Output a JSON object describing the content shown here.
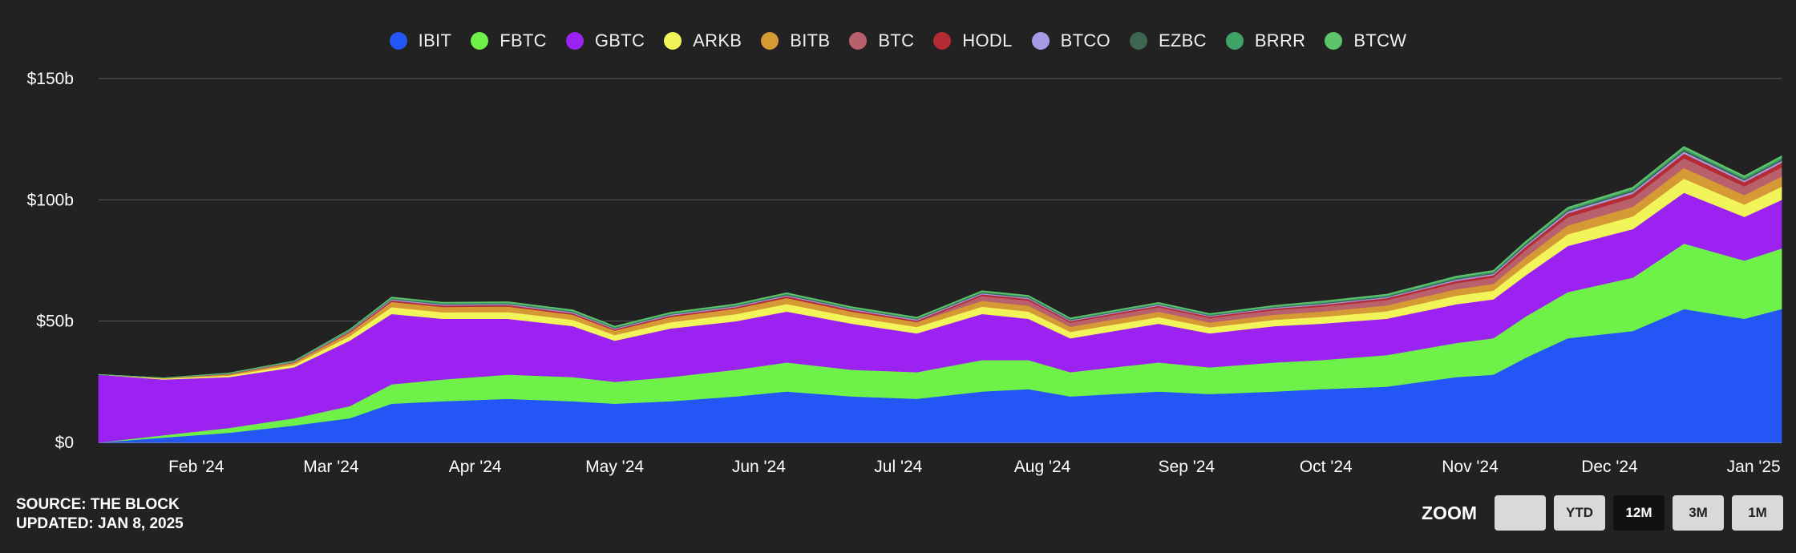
{
  "legend": [
    {
      "name": "IBIT",
      "color": "#2456f5"
    },
    {
      "name": "FBTC",
      "color": "#6ef24a"
    },
    {
      "name": "GBTC",
      "color": "#9b22f0"
    },
    {
      "name": "ARKB",
      "color": "#f2f55a"
    },
    {
      "name": "BITB",
      "color": "#d69a35"
    },
    {
      "name": "BTC",
      "color": "#b8606c"
    },
    {
      "name": "HODL",
      "color": "#b52b35"
    },
    {
      "name": "BTCO",
      "color": "#a99ae6"
    },
    {
      "name": "EZBC",
      "color": "#3f6650"
    },
    {
      "name": "BRRR",
      "color": "#3fa368"
    },
    {
      "name": "BTCW",
      "color": "#5cc46a"
    }
  ],
  "footer": {
    "source": "SOURCE: THE BLOCK",
    "updated": "UPDATED: JAN 8, 2025"
  },
  "zoom": {
    "label": "ZOOM",
    "buttons": [
      {
        "label": "",
        "active": false
      },
      {
        "label": "YTD",
        "active": false
      },
      {
        "label": "12M",
        "active": true
      },
      {
        "label": "3M",
        "active": false
      },
      {
        "label": "1M",
        "active": false
      }
    ]
  },
  "chart_data": {
    "type": "area",
    "stacked": true,
    "title": "",
    "xlabel": "",
    "ylabel": "",
    "ylim": [
      0,
      150
    ],
    "y_unit": "$b",
    "y_ticks": [
      "$0",
      "$50b",
      "$100b",
      "$150b"
    ],
    "y_tick_values": [
      0,
      50,
      100,
      150
    ],
    "x_ticks": [
      "Feb '24",
      "Mar '24",
      "Apr '24",
      "May '24",
      "Jun '24",
      "Jul '24",
      "Aug '24",
      "Sep '24",
      "Oct '24",
      "Nov '24",
      "Dec '24",
      "Jan '25"
    ],
    "x_tick_dates": [
      "2024-02-01",
      "2024-03-01",
      "2024-04-01",
      "2024-05-01",
      "2024-06-01",
      "2024-07-01",
      "2024-08-01",
      "2024-09-01",
      "2024-10-01",
      "2024-11-01",
      "2024-12-01",
      "2025-01-01"
    ],
    "xlim": [
      "2024-01-11",
      "2025-01-07"
    ],
    "grid": true,
    "legend_position": "top",
    "x": [
      "2024-01-11",
      "2024-01-25",
      "2024-02-08",
      "2024-02-22",
      "2024-03-05",
      "2024-03-14",
      "2024-03-25",
      "2024-04-08",
      "2024-04-22",
      "2024-05-01",
      "2024-05-13",
      "2024-05-27",
      "2024-06-07",
      "2024-06-21",
      "2024-07-05",
      "2024-07-19",
      "2024-07-29",
      "2024-08-07",
      "2024-08-26",
      "2024-09-06",
      "2024-09-20",
      "2024-09-30",
      "2024-10-14",
      "2024-10-29",
      "2024-11-06",
      "2024-11-13",
      "2024-11-22",
      "2024-12-06",
      "2024-12-17",
      "2024-12-30",
      "2025-01-07"
    ],
    "series": [
      {
        "name": "IBIT",
        "values": [
          0,
          2,
          4,
          7,
          10,
          16,
          17,
          18,
          17,
          16,
          17,
          19,
          21,
          19,
          18,
          21,
          22,
          19,
          21,
          20,
          21,
          22,
          23,
          27,
          28,
          35,
          43,
          46,
          55,
          51,
          55
        ]
      },
      {
        "name": "FBTC",
        "values": [
          0,
          1,
          2,
          3,
          5,
          8,
          9,
          10,
          10,
          9,
          10,
          11,
          12,
          11,
          11,
          13,
          12,
          10,
          12,
          11,
          12,
          12,
          13,
          14,
          15,
          17,
          19,
          22,
          27,
          24,
          25
        ]
      },
      {
        "name": "GBTC",
        "values": [
          28,
          23,
          21,
          21,
          27,
          29,
          25,
          23,
          21,
          17,
          20,
          20,
          21,
          19,
          16,
          19,
          17,
          14,
          16,
          14,
          15,
          15,
          15,
          16,
          16,
          17,
          19,
          20,
          21,
          18,
          20
        ]
      },
      {
        "name": "ARKB",
        "values": [
          0,
          0.3,
          0.6,
          1,
          1.8,
          2.8,
          2.7,
          2.8,
          2.6,
          2.3,
          2.6,
          2.9,
          3.1,
          2.8,
          2.6,
          3,
          3,
          2.6,
          2.7,
          2.5,
          2.6,
          2.8,
          3.1,
          3.5,
          3.6,
          4.2,
          4.8,
          5.2,
          5.8,
          5.1,
          5.5
        ]
      },
      {
        "name": "BITB",
        "values": [
          0,
          0.3,
          0.5,
          0.9,
          1.5,
          2.2,
          2.2,
          2.3,
          2.1,
          1.9,
          2.1,
          2.3,
          2.5,
          2.2,
          2.1,
          2.4,
          2.4,
          2.1,
          2.2,
          2,
          2.1,
          2.2,
          2.4,
          2.7,
          2.8,
          3.3,
          3.7,
          4,
          4.4,
          3.9,
          4.2
        ]
      },
      {
        "name": "BTC",
        "values": [
          0,
          0,
          0,
          0,
          0,
          0,
          0,
          0,
          0,
          0,
          0,
          0,
          0,
          0,
          0,
          2,
          2.1,
          1.8,
          1.9,
          1.8,
          1.9,
          2,
          2.2,
          2.5,
          2.6,
          3,
          3.4,
          3.7,
          4,
          3.6,
          3.8
        ]
      },
      {
        "name": "HODL",
        "values": [
          0,
          0,
          0.1,
          0.2,
          0.4,
          0.6,
          0.6,
          0.6,
          0.6,
          0.5,
          0.6,
          0.6,
          0.7,
          0.6,
          0.6,
          0.7,
          0.7,
          0.6,
          0.6,
          0.6,
          0.6,
          0.7,
          0.8,
          0.9,
          1,
          1.3,
          1.6,
          1.7,
          1.9,
          1.7,
          1.8
        ]
      },
      {
        "name": "BTCO",
        "values": [
          0,
          0,
          0.1,
          0.2,
          0.3,
          0.4,
          0.4,
          0.4,
          0.4,
          0.3,
          0.4,
          0.4,
          0.4,
          0.4,
          0.4,
          0.4,
          0.4,
          0.3,
          0.4,
          0.3,
          0.4,
          0.4,
          0.4,
          0.5,
          0.5,
          0.6,
          0.7,
          0.7,
          0.8,
          0.7,
          0.8
        ]
      },
      {
        "name": "EZBC",
        "values": [
          0,
          0,
          0.1,
          0.1,
          0.2,
          0.3,
          0.3,
          0.3,
          0.3,
          0.3,
          0.3,
          0.3,
          0.4,
          0.3,
          0.3,
          0.4,
          0.4,
          0.3,
          0.3,
          0.3,
          0.3,
          0.4,
          0.4,
          0.5,
          0.5,
          0.6,
          0.6,
          0.7,
          0.8,
          0.7,
          0.7
        ]
      },
      {
        "name": "BRRR",
        "values": [
          0,
          0,
          0.1,
          0.1,
          0.2,
          0.3,
          0.3,
          0.3,
          0.3,
          0.3,
          0.3,
          0.3,
          0.3,
          0.3,
          0.3,
          0.3,
          0.3,
          0.3,
          0.3,
          0.3,
          0.3,
          0.4,
          0.4,
          0.5,
          0.5,
          0.5,
          0.6,
          0.6,
          0.7,
          0.6,
          0.7
        ]
      },
      {
        "name": "BTCW",
        "values": [
          0,
          0,
          0.1,
          0.1,
          0.2,
          0.3,
          0.3,
          0.3,
          0.3,
          0.3,
          0.3,
          0.3,
          0.3,
          0.3,
          0.3,
          0.3,
          0.3,
          0.3,
          0.3,
          0.3,
          0.3,
          0.3,
          0.4,
          0.4,
          0.4,
          0.5,
          0.5,
          0.6,
          0.6,
          0.6,
          0.6
        ]
      }
    ]
  }
}
